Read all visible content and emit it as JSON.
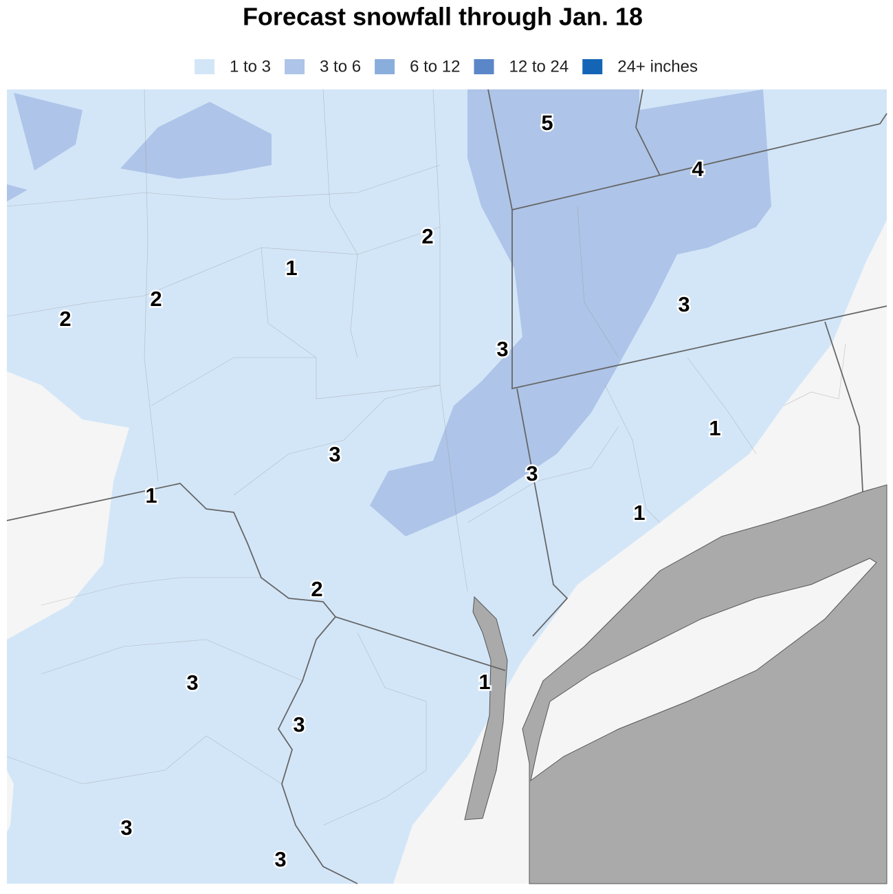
{
  "title": "Forecast snowfall through Jan. 18",
  "legend": [
    {
      "label": "1 to 3",
      "color": "#d3e6f8"
    },
    {
      "label": "3 to 6",
      "color": "#aec4e8"
    },
    {
      "label": "6 to 12",
      "color": "#8aaedc"
    },
    {
      "label": "12 to 24",
      "color": "#5b87c9"
    },
    {
      "label": "24+ inches",
      "color": "#1565b7"
    }
  ],
  "labels": [
    5,
    4,
    2,
    1,
    2,
    2,
    3,
    3,
    1,
    3,
    3,
    1,
    1,
    2,
    1,
    3,
    3,
    3,
    3
  ]
}
